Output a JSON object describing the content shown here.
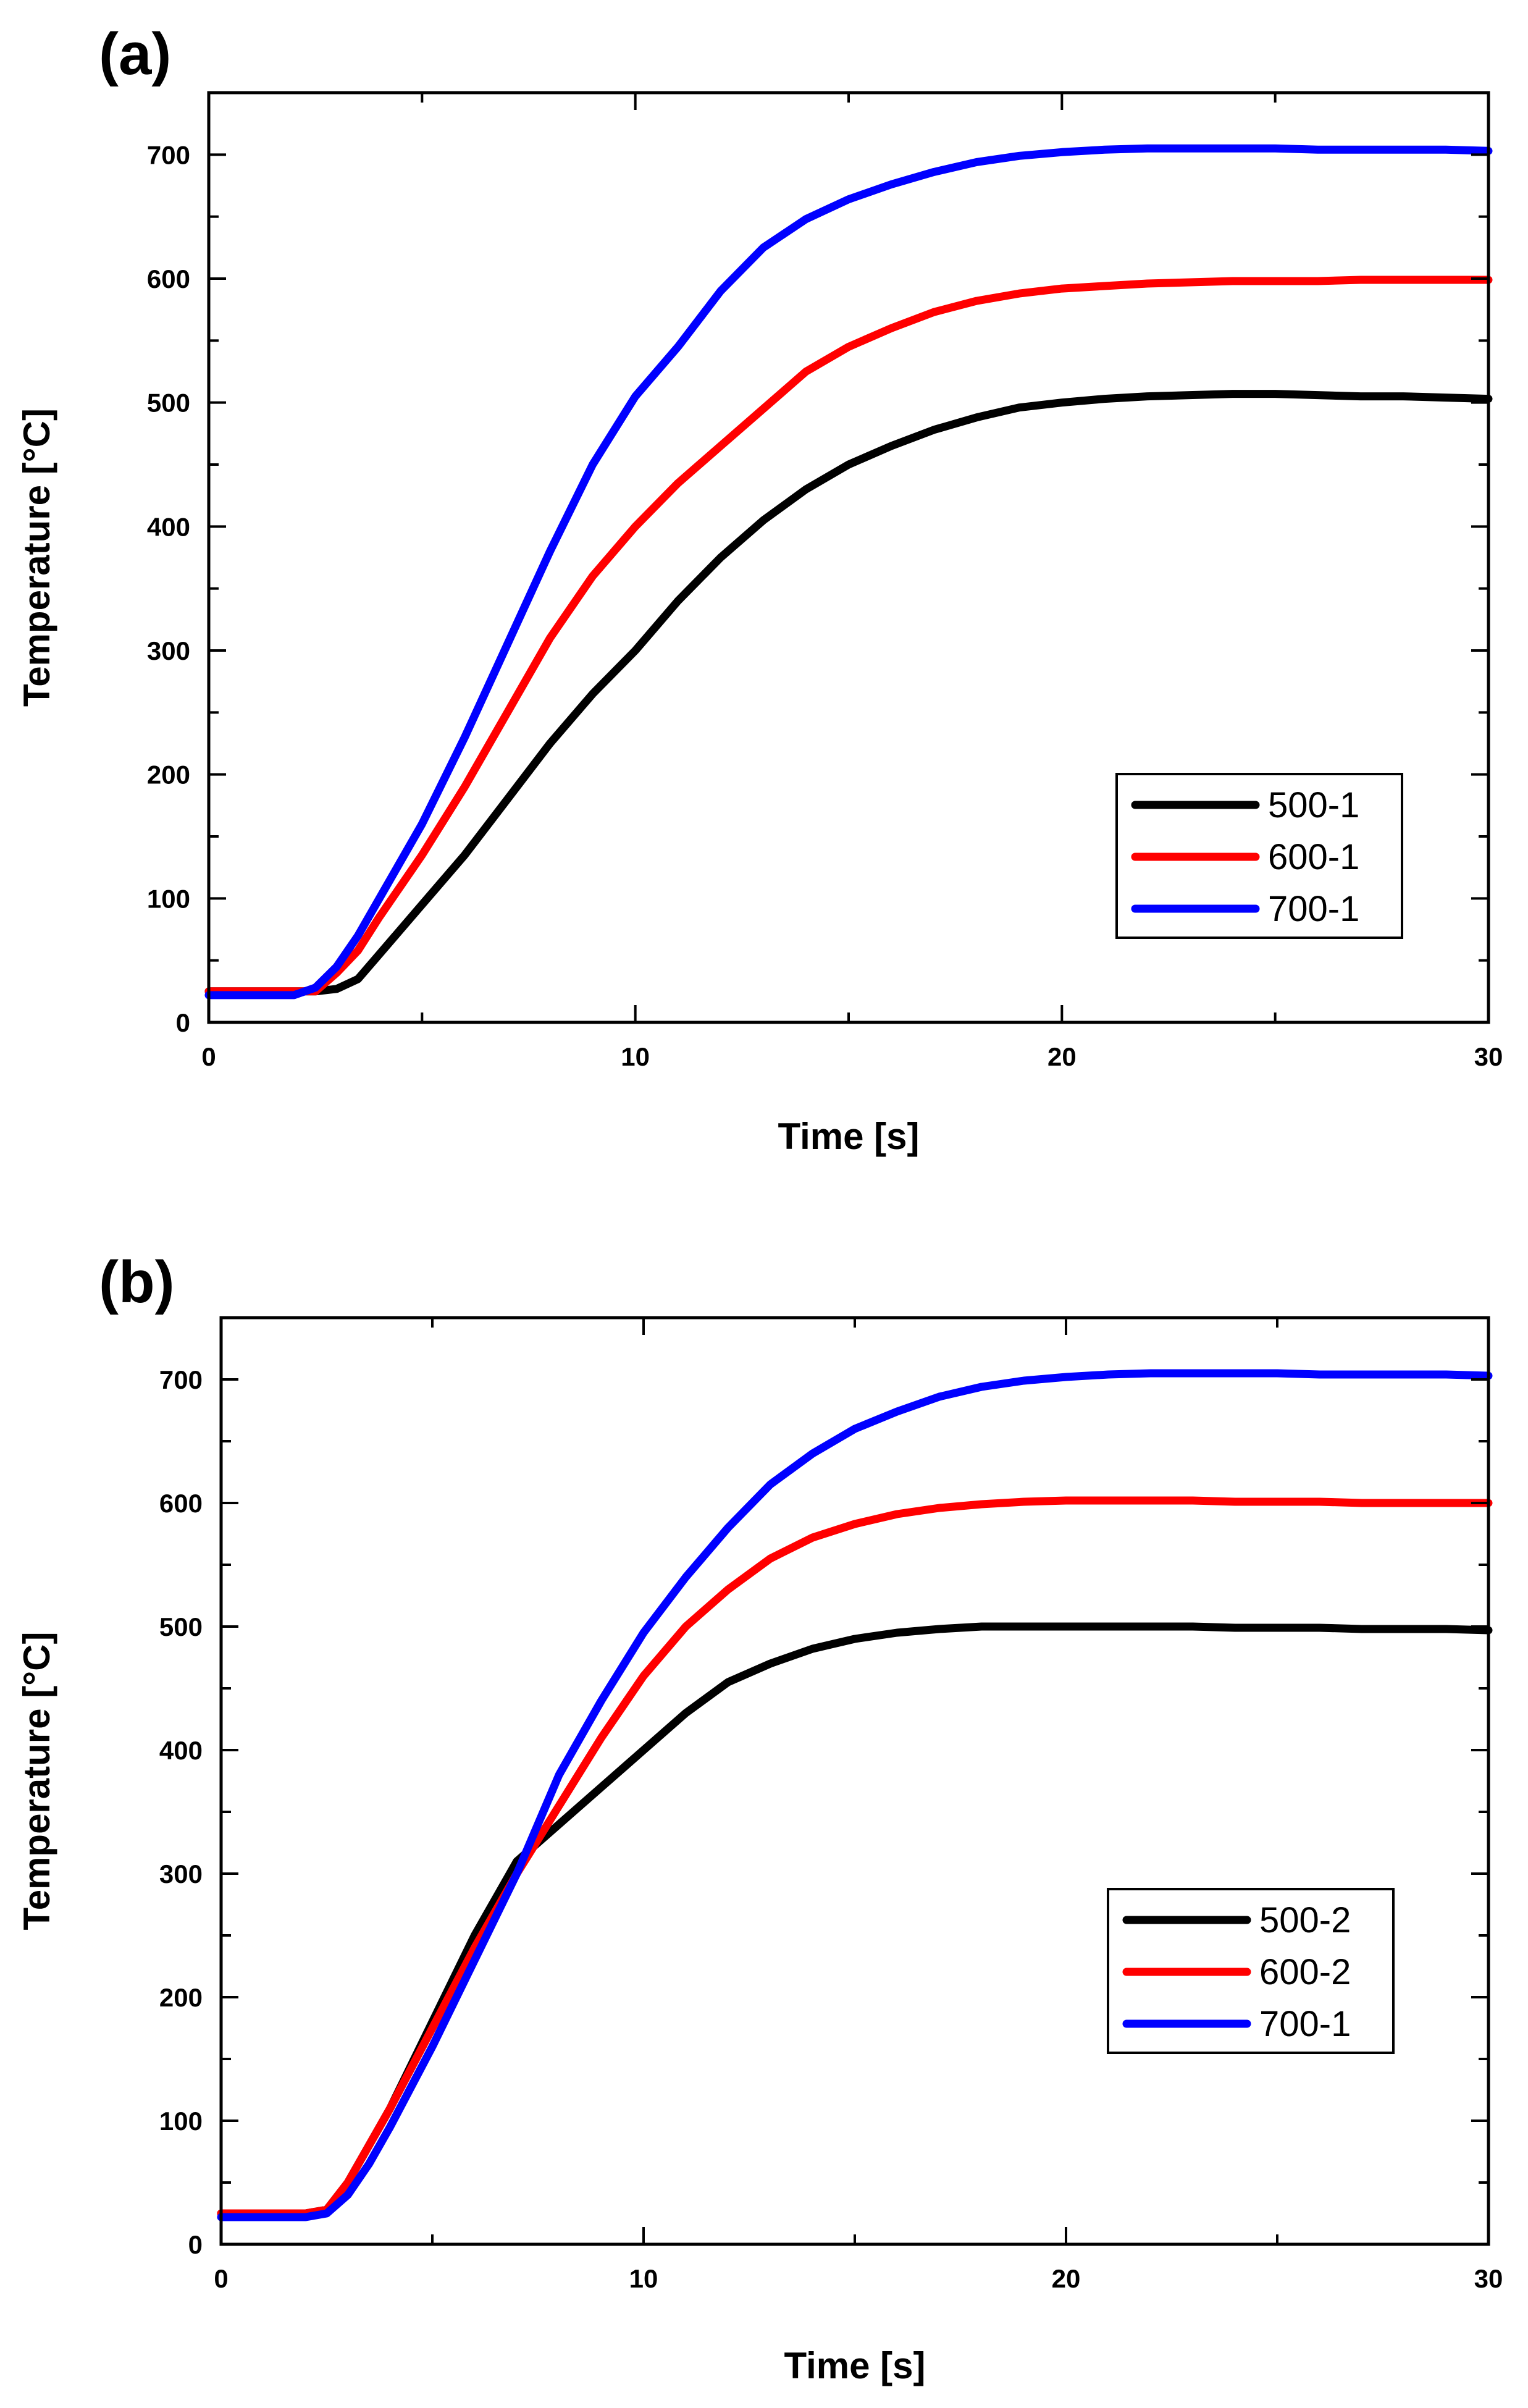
{
  "chart_data": [
    {
      "type": "line",
      "panel_label": "(a)",
      "xlabel": "Time [s]",
      "ylabel": "Temperature [°C]",
      "xlim": [
        0,
        30
      ],
      "ylim": [
        0,
        750
      ],
      "xticks": [
        0,
        10,
        20,
        30
      ],
      "yticks": [
        0,
        100,
        200,
        300,
        400,
        500,
        600,
        700
      ],
      "legend_position": "lower-right",
      "x": [
        0,
        1,
        2,
        2.5,
        3,
        3.5,
        4,
        5,
        6,
        7,
        8,
        9,
        10,
        11,
        12,
        13,
        14,
        15,
        16,
        17,
        18,
        19,
        20,
        21,
        22,
        23,
        24,
        25,
        26,
        27,
        28,
        29,
        30
      ],
      "series": [
        {
          "name": "500-1",
          "color": "#000000",
          "values": [
            25,
            25,
            25,
            25,
            27,
            35,
            55,
            95,
            135,
            180,
            225,
            265,
            300,
            340,
            375,
            405,
            430,
            450,
            465,
            478,
            488,
            496,
            500,
            503,
            505,
            506,
            507,
            507,
            506,
            505,
            505,
            504,
            503
          ]
        },
        {
          "name": "600-1",
          "color": "#ff0000",
          "values": [
            25,
            25,
            25,
            25,
            40,
            58,
            85,
            135,
            190,
            250,
            310,
            360,
            400,
            435,
            465,
            495,
            525,
            545,
            560,
            573,
            582,
            588,
            592,
            594,
            596,
            597,
            598,
            598,
            598,
            599,
            599,
            599,
            599
          ]
        },
        {
          "name": "700-1",
          "color": "#0000ff",
          "values": [
            22,
            22,
            22,
            28,
            45,
            70,
            100,
            160,
            230,
            305,
            380,
            450,
            505,
            545,
            590,
            625,
            648,
            664,
            676,
            686,
            694,
            699,
            702,
            704,
            705,
            705,
            705,
            705,
            704,
            704,
            704,
            704,
            703
          ]
        }
      ]
    },
    {
      "type": "line",
      "panel_label": "(b)",
      "xlabel": "Time [s]",
      "ylabel": "Temperature [°C]",
      "xlim": [
        0,
        30
      ],
      "ylim": [
        0,
        750
      ],
      "xticks": [
        0,
        10,
        20,
        30
      ],
      "yticks": [
        0,
        100,
        200,
        300,
        400,
        500,
        600,
        700
      ],
      "legend_position": "lower-right",
      "x": [
        0,
        1,
        2,
        2.5,
        3,
        3.5,
        4,
        5,
        6,
        7,
        8,
        9,
        10,
        11,
        12,
        13,
        14,
        15,
        16,
        17,
        18,
        19,
        20,
        21,
        22,
        23,
        24,
        25,
        26,
        27,
        28,
        29,
        30
      ],
      "series": [
        {
          "name": "500-2",
          "color": "#000000",
          "values": [
            25,
            25,
            25,
            28,
            50,
            80,
            110,
            180,
            250,
            310,
            340,
            370,
            400,
            430,
            455,
            470,
            482,
            490,
            495,
            498,
            500,
            500,
            500,
            500,
            500,
            500,
            499,
            499,
            499,
            498,
            498,
            498,
            497
          ]
        },
        {
          "name": "600-2",
          "color": "#ff0000",
          "values": [
            25,
            25,
            25,
            28,
            50,
            80,
            110,
            175,
            240,
            300,
            355,
            410,
            460,
            500,
            530,
            555,
            572,
            583,
            591,
            596,
            599,
            601,
            602,
            602,
            602,
            602,
            601,
            601,
            601,
            600,
            600,
            600,
            600
          ]
        },
        {
          "name": "700-1",
          "color": "#0000ff",
          "values": [
            22,
            22,
            22,
            25,
            40,
            65,
            95,
            160,
            230,
            300,
            380,
            440,
            495,
            540,
            580,
            615,
            640,
            660,
            674,
            686,
            694,
            699,
            702,
            704,
            705,
            705,
            705,
            705,
            704,
            704,
            704,
            704,
            703
          ]
        }
      ]
    }
  ]
}
